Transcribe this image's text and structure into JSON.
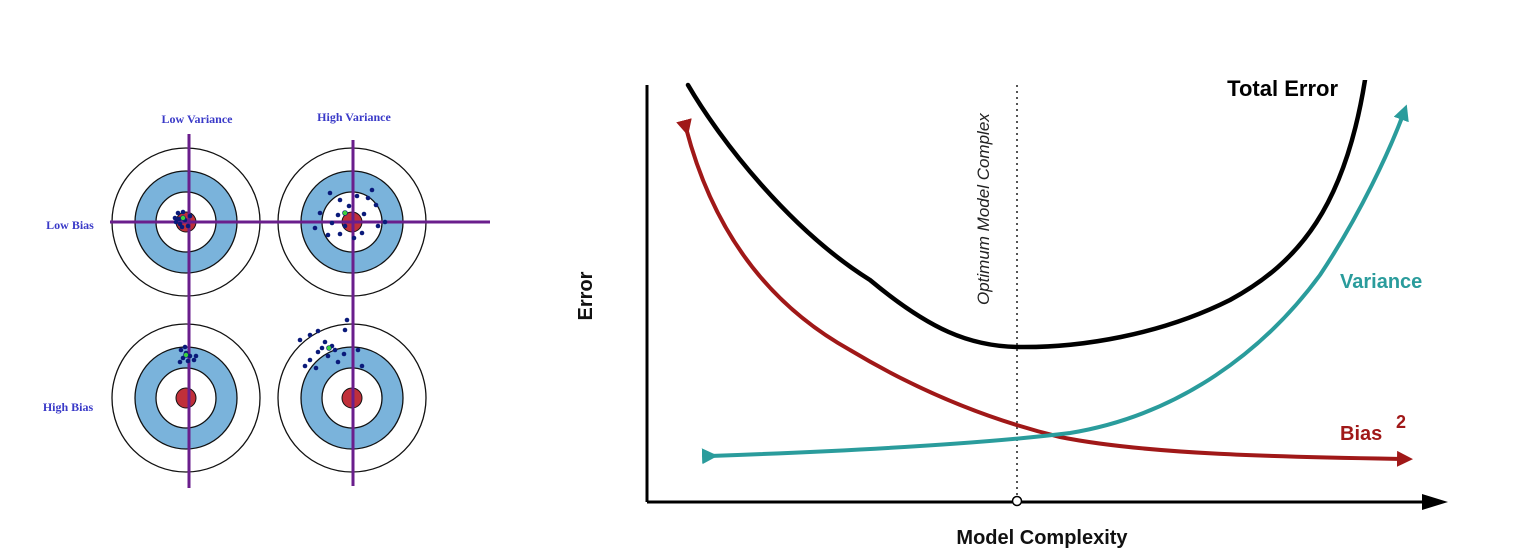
{
  "targets": {
    "col_labels": [
      "Low Variance",
      "High Variance"
    ],
    "row_labels": [
      "Low Bias",
      "High Bias"
    ]
  },
  "tradeoff": {
    "y_axis_label": "Error",
    "x_axis_label": "Model Complexity",
    "optimum_label": "Optimum Model Complex",
    "curves": {
      "total_error": "Total Error",
      "variance": "Variance",
      "bias": "Bias",
      "bias_superscript": "2"
    }
  },
  "colors": {
    "target_ring_blue": "#7ab3db",
    "bullseye": "#c0303a",
    "crosshair": "#6a1e8c",
    "dots": "#0a1a7a",
    "label_blue": "#3a3ac8",
    "total_error": "#000000",
    "variance": "#2a9c9c",
    "bias": "#a01818"
  }
}
